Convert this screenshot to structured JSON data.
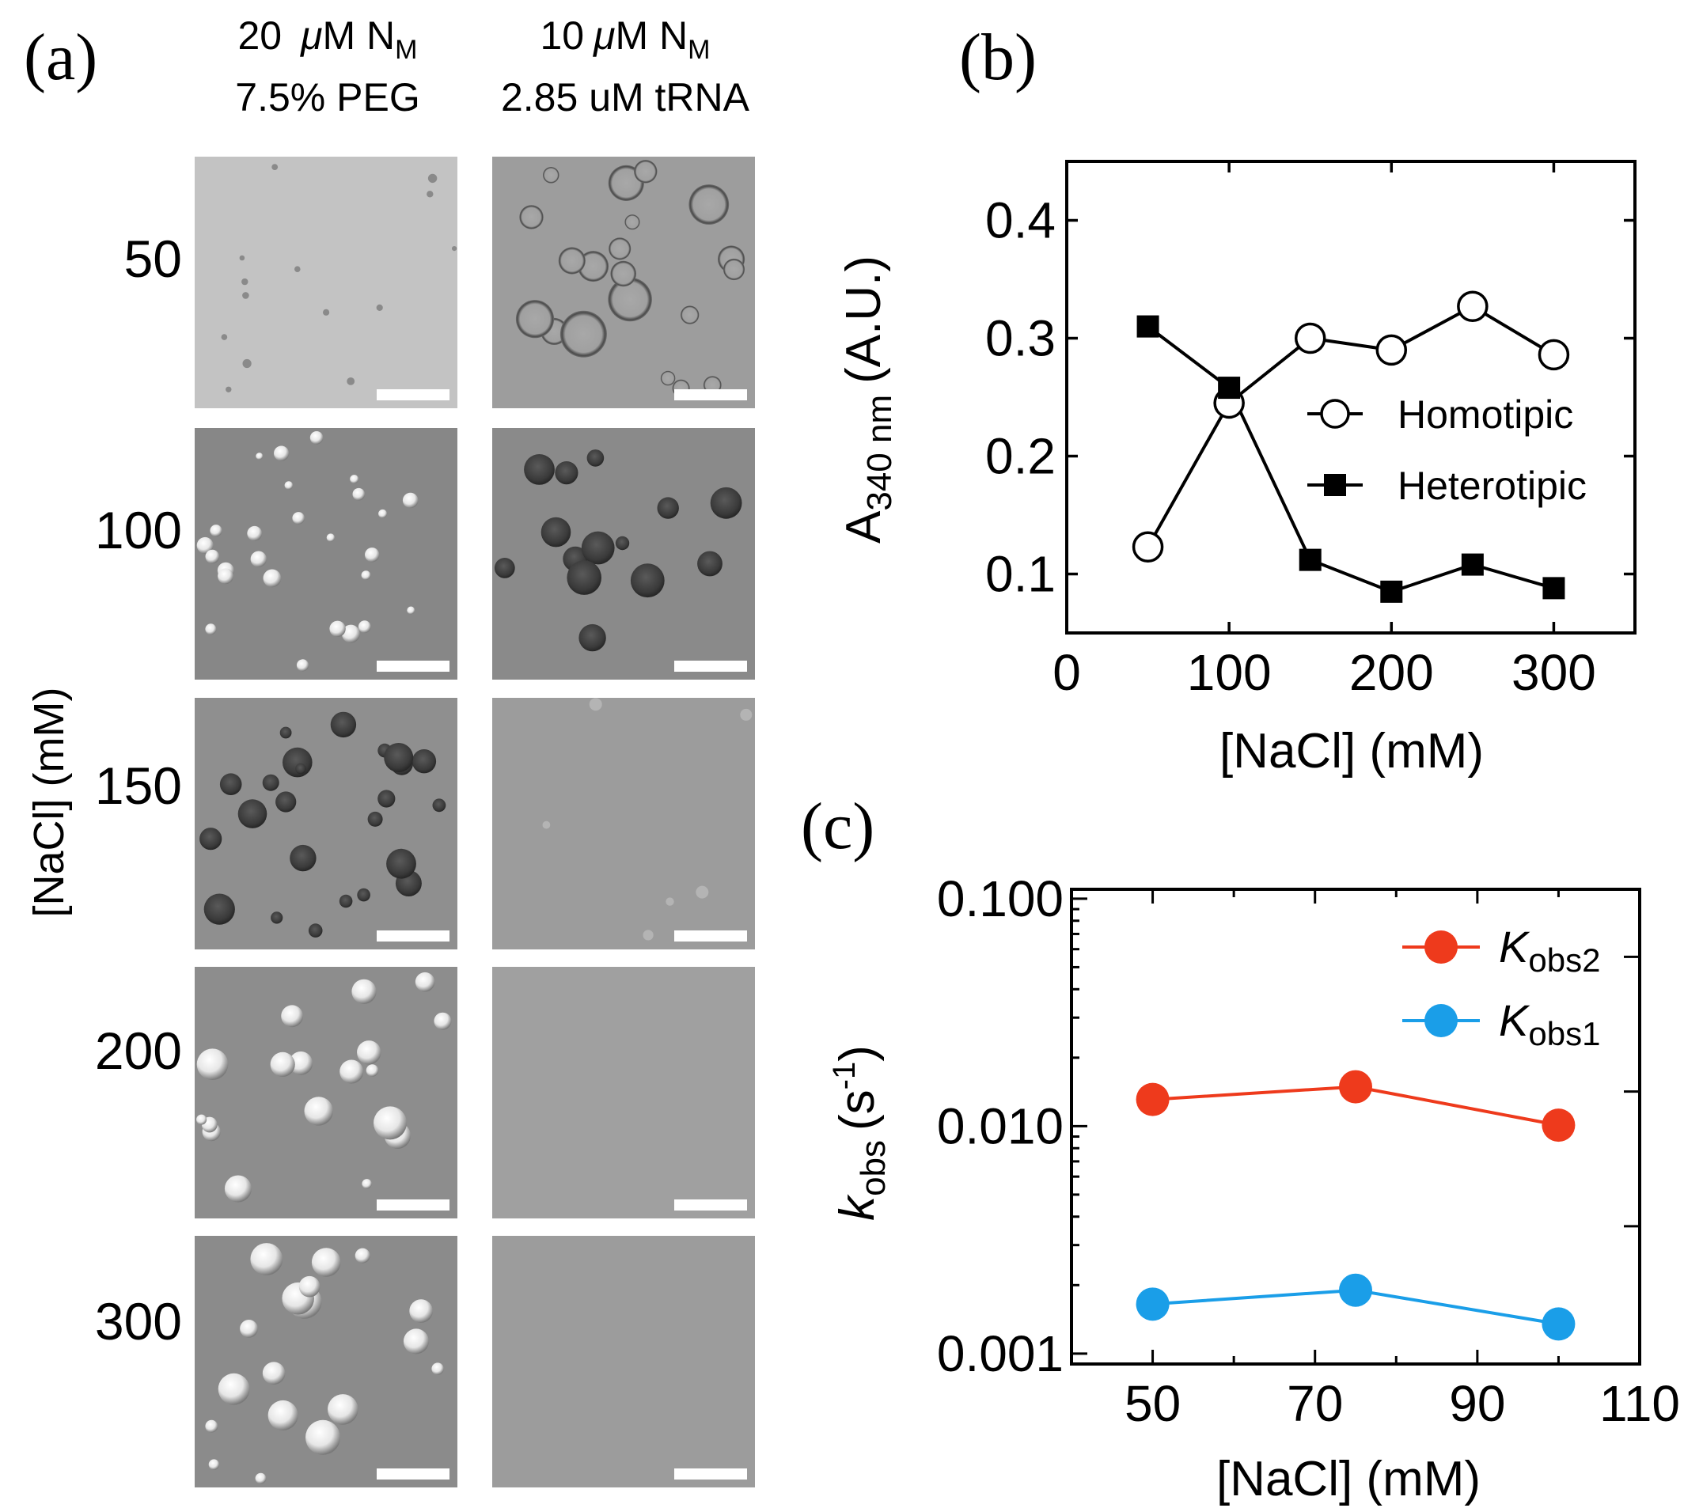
{
  "panel_a": {
    "letter": "(a)",
    "col1_line1": {
      "prefix": "20",
      "mu": "μ",
      "unit": "M N",
      "sub": "M"
    },
    "col1_line2": "7.5% PEG",
    "col2_line1": {
      "prefix": "10",
      "mu": "μ",
      "unit": "M N",
      "sub": "M"
    },
    "col2_line2": "2.85 uM tRNA",
    "ylabel": "[NaCl] (mM)",
    "rows": [
      "50",
      "100",
      "150",
      "200",
      "300"
    ],
    "micrographs": [
      {
        "row": "50",
        "col1_bg": "#c3c3c3",
        "col2_bg": "#9d9d9d",
        "col2_droplets": "many"
      },
      {
        "row": "100",
        "col1_bg": "#878787",
        "col2_bg": "#8a8a8a",
        "col2_droplets": "many"
      },
      {
        "row": "150",
        "col1_bg": "#8f8f8f",
        "col2_bg": "#9c9c9c",
        "col2_droplets": "few"
      },
      {
        "row": "200",
        "col1_bg": "#8d8d8d",
        "col2_bg": "#a0a0a0",
        "col2_droplets": "none"
      },
      {
        "row": "300",
        "col1_bg": "#8b8b8b",
        "col2_bg": "#9c9c9c",
        "col2_droplets": "none"
      }
    ]
  },
  "chart_data": [
    {
      "panel": "(b)",
      "type": "line",
      "xlabel": "[NaCl] (mM)",
      "ylabel_main": "A",
      "ylabel_sub": "340 nm",
      "ylabel_tail": "(A.U.)",
      "xlim": [
        0,
        350
      ],
      "ylim": [
        0.05,
        0.45
      ],
      "xticks": [
        0,
        100,
        200,
        300
      ],
      "xtick_labels": [
        "0",
        "100",
        "200",
        "300"
      ],
      "yticks": [
        0.1,
        0.2,
        0.3,
        0.4
      ],
      "ytick_labels": [
        "0.1",
        "0.2",
        "0.3",
        "0.4"
      ],
      "legend_position": "right",
      "series": [
        {
          "name": "Homotipic",
          "marker": "open-circle",
          "color": "#000000",
          "x": [
            50,
            100,
            150,
            200,
            250,
            300
          ],
          "y": [
            0.123,
            0.245,
            0.3,
            0.29,
            0.327,
            0.286
          ]
        },
        {
          "name": "Heterotipic",
          "marker": "filled-square",
          "color": "#000000",
          "x": [
            50,
            100,
            150,
            200,
            250,
            300
          ],
          "y": [
            0.31,
            0.258,
            0.112,
            0.085,
            0.108,
            0.088
          ]
        }
      ]
    },
    {
      "panel": "(c)",
      "type": "line",
      "xlabel": "[NaCl] (mM)",
      "ylabel_main": "k",
      "ylabel_sub": "obs",
      "ylabel_tail": "(s",
      "ylabel_sup": "-1",
      "ylabel_close": ")",
      "yscale": "log",
      "xlim": [
        40,
        110
      ],
      "ylim": [
        0.0009,
        0.11
      ],
      "xticks": [
        50,
        70,
        90,
        110
      ],
      "xtick_labels": [
        "50",
        "70",
        "90",
        "110"
      ],
      "yticks": [
        0.001,
        0.01,
        0.1
      ],
      "ytick_labels": [
        "0.001",
        "0.010",
        "0.100"
      ],
      "legend_position": "top-right",
      "series": [
        {
          "name": "obs2",
          "legend_main": "K",
          "legend_sub": "obs2",
          "color": "#ee3a1c",
          "x": [
            50,
            75,
            100
          ],
          "y": [
            0.0131,
            0.0149,
            0.0101
          ]
        },
        {
          "name": "obs1",
          "legend_main": "K",
          "legend_sub": "obs1",
          "color": "#1a9ee8",
          "x": [
            50,
            75,
            100
          ],
          "y": [
            0.00165,
            0.0019,
            0.00135
          ]
        }
      ]
    }
  ]
}
